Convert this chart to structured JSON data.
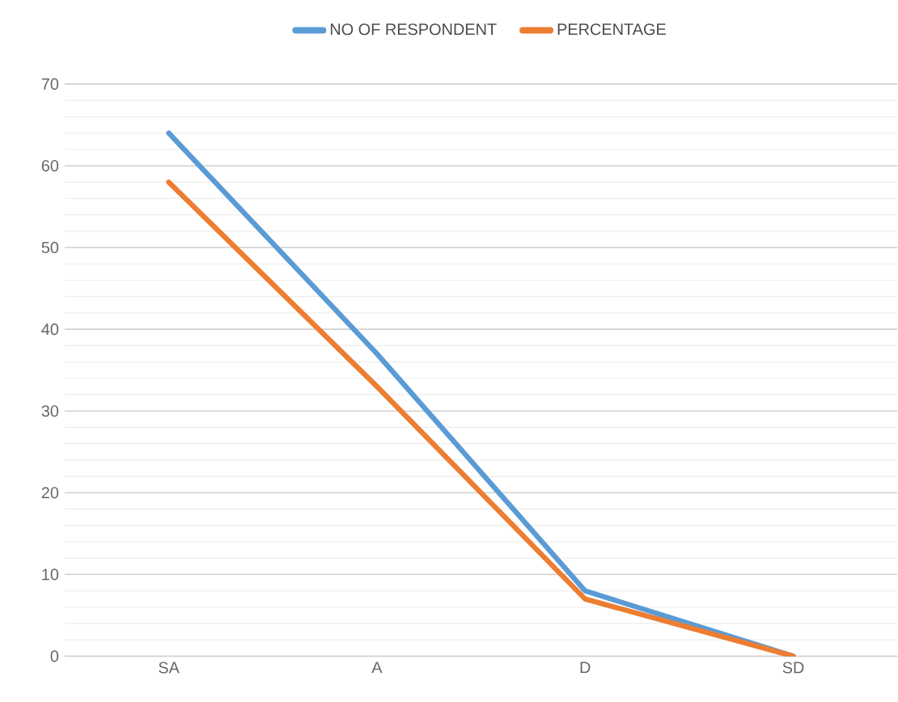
{
  "chart_data": {
    "type": "line",
    "categories": [
      "SA",
      "A",
      "D",
      "SD"
    ],
    "series": [
      {
        "name": "NO OF RESPONDENT",
        "color": "#5b9bd5",
        "values": [
          64,
          37,
          8,
          0
        ]
      },
      {
        "name": "PERCENTAGE",
        "color": "#ed7d31",
        "values": [
          58,
          33,
          7,
          0
        ]
      }
    ],
    "ylim": [
      0,
      70
    ],
    "yticks": [
      0,
      10,
      20,
      30,
      40,
      50,
      60,
      70
    ],
    "grid": "y",
    "legend": "top",
    "marker": "none",
    "line_style": "solid"
  }
}
